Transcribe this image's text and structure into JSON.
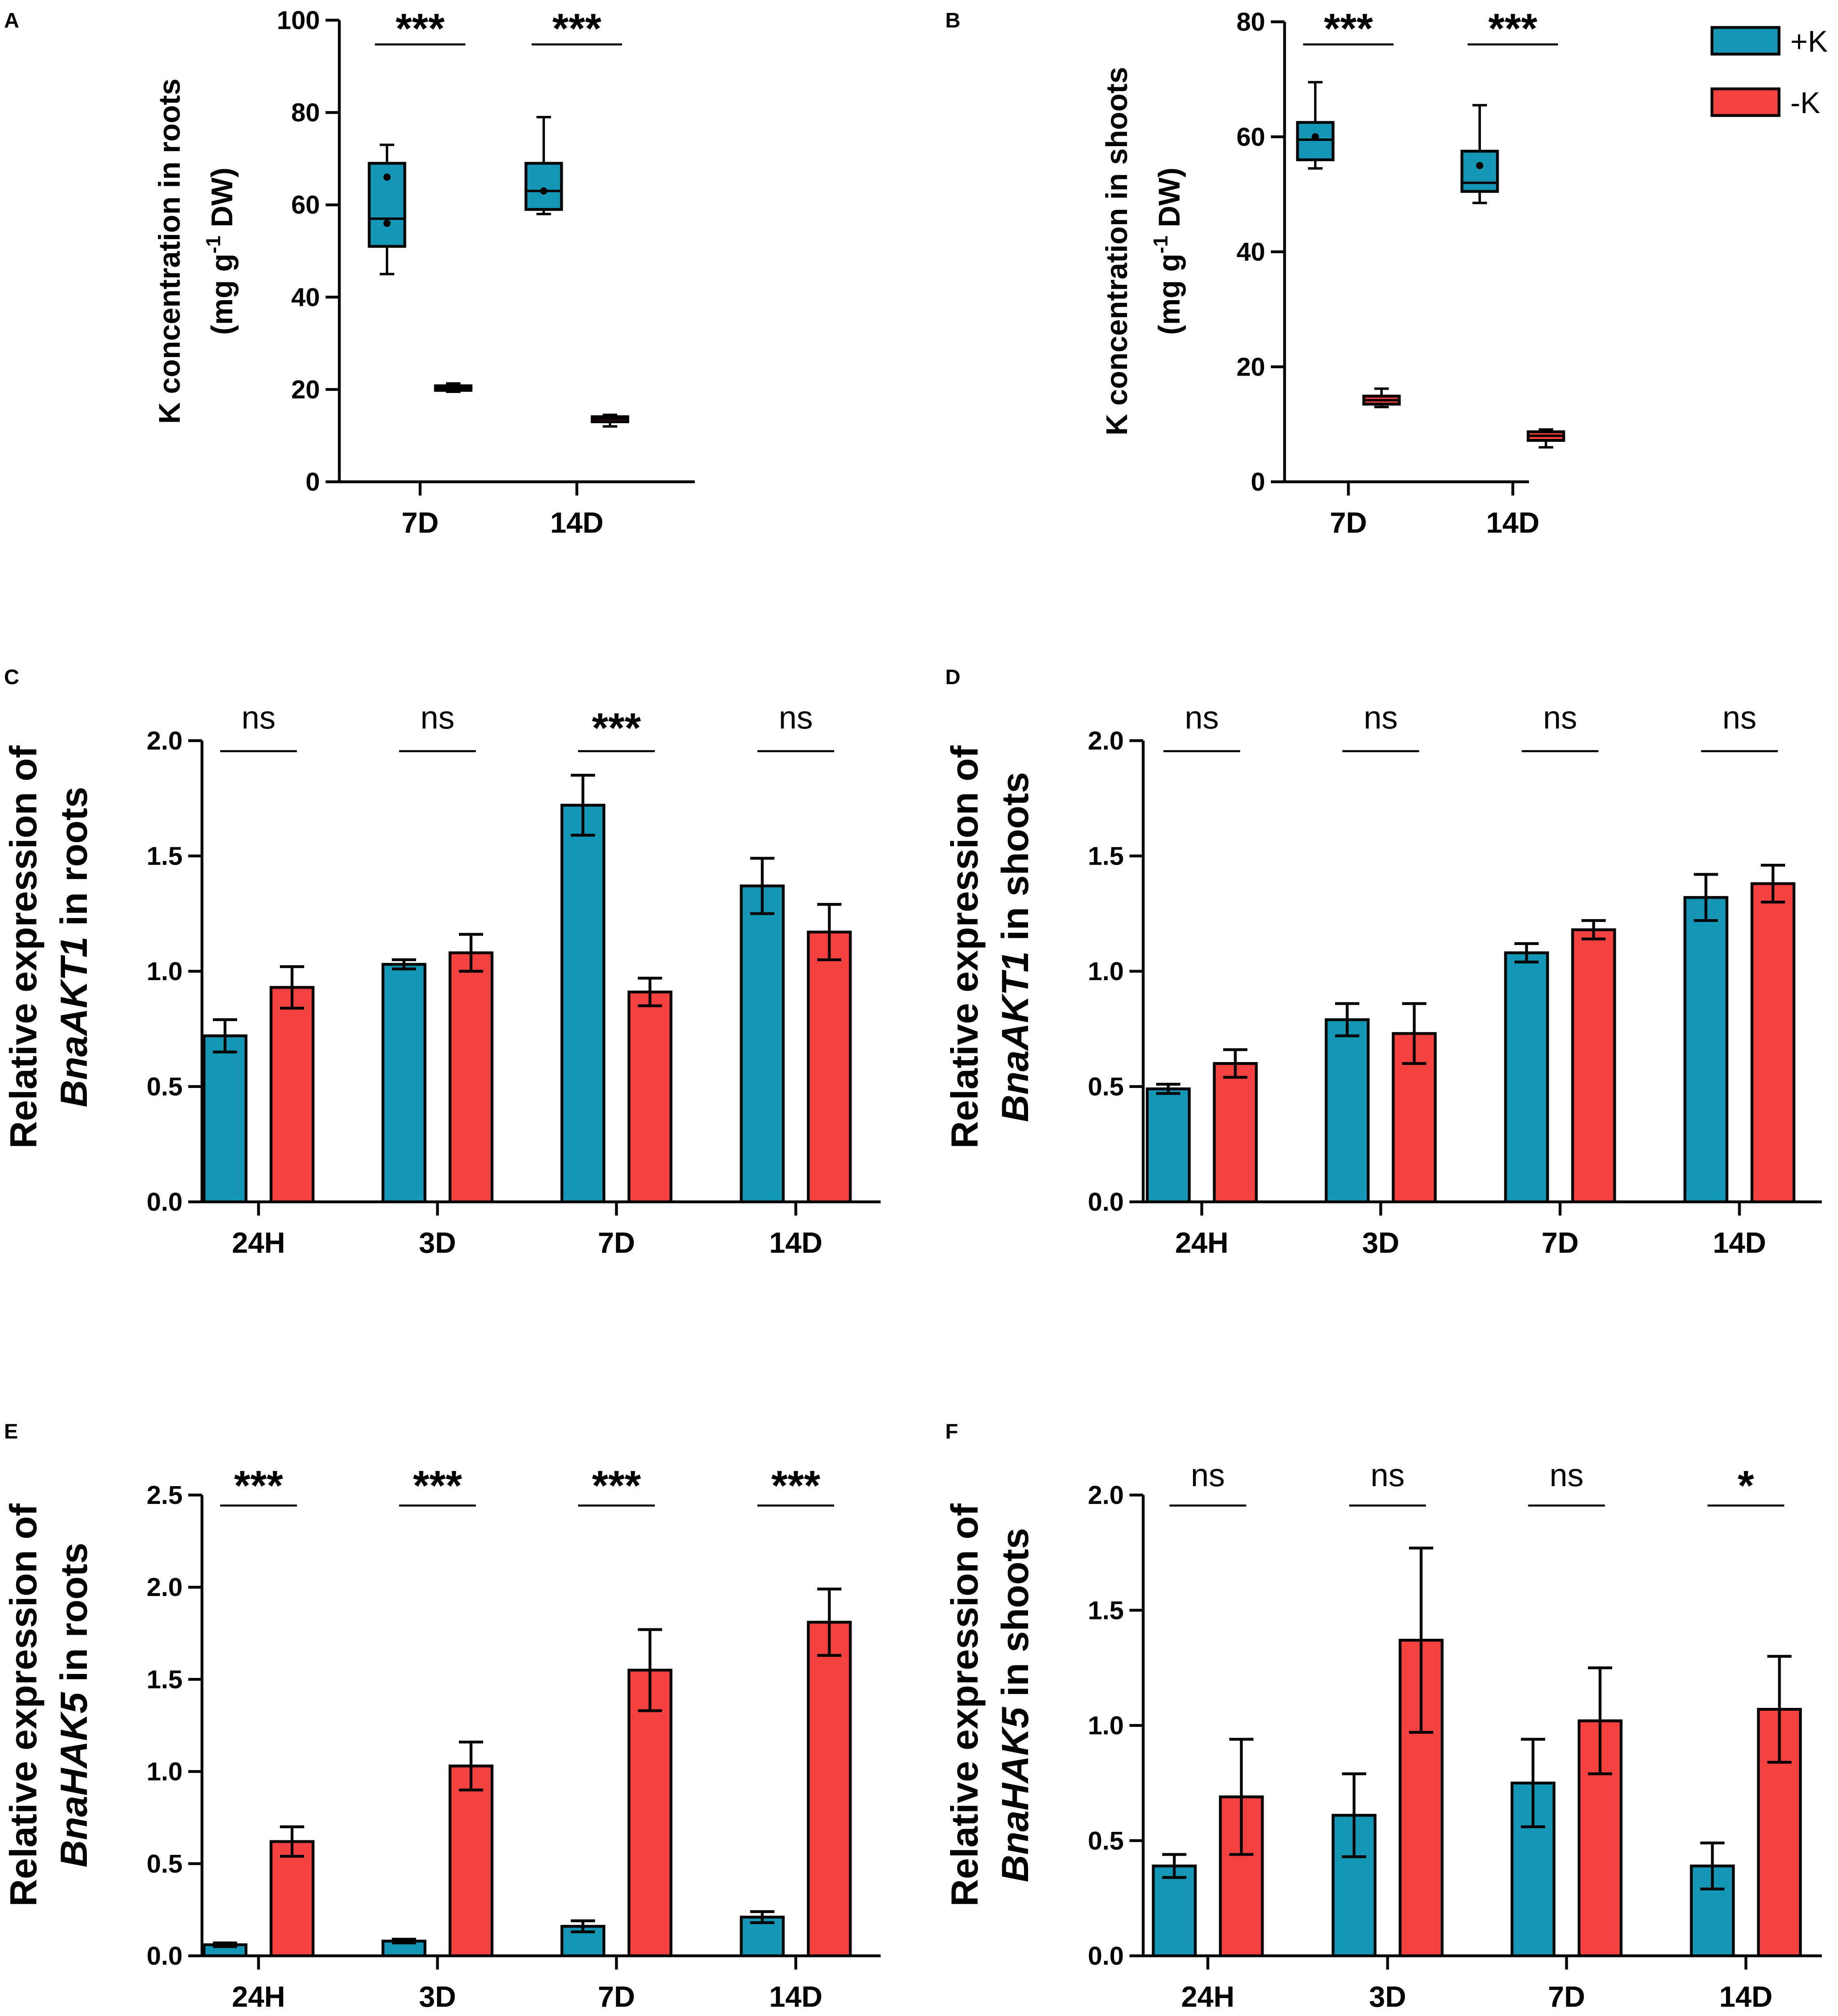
{
  "legend": {
    "entries": [
      {
        "label": "+K",
        "color": "#1397b5"
      },
      {
        "label": "-K",
        "color": "#f5413f"
      }
    ]
  },
  "chart_data": [
    {
      "panel": "A",
      "type": "box",
      "title": "",
      "xlabel": "",
      "ylabel_line1": "K concentration in roots",
      "ylabel_line2_pre": "(mg g",
      "ylabel_line2_sup": "-1",
      "ylabel_line2_post": " DW)",
      "ylim": [
        0,
        100
      ],
      "yticks": [
        0,
        20,
        40,
        60,
        80,
        100
      ],
      "ytick_labels": [
        "0",
        "20",
        "40",
        "60",
        "80",
        "100"
      ],
      "categories": [
        "7D",
        "14D"
      ],
      "series": [
        {
          "name": "+K",
          "boxes": [
            {
              "min": 45,
              "q1": 51,
              "median": 57,
              "q3": 69,
              "max": 73,
              "points": [
                66,
                56
              ]
            },
            {
              "min": 58,
              "q1": 59,
              "median": 63,
              "q3": 69,
              "max": 79,
              "points": [
                63
              ]
            }
          ]
        },
        {
          "name": "-K",
          "boxes": [
            {
              "min": 19.5,
              "q1": 19.8,
              "median": 20.3,
              "q3": 20.8,
              "max": 21.3,
              "points": []
            },
            {
              "min": 12,
              "q1": 13,
              "median": 13.6,
              "q3": 14.1,
              "max": 14.5,
              "points": []
            }
          ]
        }
      ],
      "significance": [
        "***",
        "***"
      ]
    },
    {
      "panel": "B",
      "type": "box",
      "title": "",
      "xlabel": "",
      "ylabel_line1": "K concentration in shoots",
      "ylabel_line2_pre": "(mg g",
      "ylabel_line2_sup": "-1",
      "ylabel_line2_post": " DW)",
      "ylim": [
        0,
        80
      ],
      "yticks": [
        0,
        20,
        40,
        60,
        80
      ],
      "ytick_labels": [
        "0",
        "20",
        "40",
        "60",
        "80"
      ],
      "categories": [
        "7D",
        "14D"
      ],
      "series": [
        {
          "name": "+K",
          "boxes": [
            {
              "min": 54.5,
              "q1": 56,
              "median": 59.5,
              "q3": 62.5,
              "max": 69.5,
              "points": [
                60
              ]
            },
            {
              "min": 48.5,
              "q1": 50.5,
              "median": 52,
              "q3": 57.5,
              "max": 65.5,
              "points": [
                55
              ]
            }
          ]
        },
        {
          "name": "-K",
          "boxes": [
            {
              "min": 13,
              "q1": 13.5,
              "median": 14.2,
              "q3": 14.9,
              "max": 16.2,
              "points": []
            },
            {
              "min": 6,
              "q1": 7.2,
              "median": 8,
              "q3": 8.7,
              "max": 9.1,
              "points": []
            }
          ]
        }
      ],
      "significance": [
        "***",
        "***"
      ]
    },
    {
      "panel": "C",
      "type": "bar",
      "title": "",
      "xlabel": "",
      "ylabel_line1": "Relative expression of",
      "ylabel_gene": "BnaAKT1",
      "ylabel_tail": " in roots",
      "ylim": [
        0,
        2.0
      ],
      "yticks": [
        0,
        0.5,
        1.0,
        1.5,
        2.0
      ],
      "ytick_labels": [
        "0.0",
        "0.5",
        "1.0",
        "1.5",
        "2.0"
      ],
      "categories": [
        "24H",
        "3D",
        "7D",
        "14D"
      ],
      "series": [
        {
          "name": "+K",
          "values": [
            0.72,
            1.03,
            1.72,
            1.37
          ],
          "errors": [
            0.07,
            0.02,
            0.13,
            0.12
          ]
        },
        {
          "name": "-K",
          "values": [
            0.93,
            1.08,
            0.91,
            1.17
          ],
          "errors": [
            0.09,
            0.08,
            0.06,
            0.12
          ]
        }
      ],
      "significance": [
        "ns",
        "ns",
        "***",
        "ns"
      ]
    },
    {
      "panel": "D",
      "type": "bar",
      "title": "",
      "xlabel": "",
      "ylabel_line1": "Relative expression of",
      "ylabel_gene": "BnaAKT1",
      "ylabel_tail": " in shoots",
      "ylim": [
        0,
        2.0
      ],
      "yticks": [
        0,
        0.5,
        1.0,
        1.5,
        2.0
      ],
      "ytick_labels": [
        "0.0",
        "0.5",
        "1.0",
        "1.5",
        "2.0"
      ],
      "categories": [
        "24H",
        "3D",
        "7D",
        "14D"
      ],
      "series": [
        {
          "name": "+K",
          "values": [
            0.49,
            0.79,
            1.08,
            1.32
          ],
          "errors": [
            0.02,
            0.07,
            0.04,
            0.1
          ]
        },
        {
          "name": "-K",
          "values": [
            0.6,
            0.73,
            1.18,
            1.38
          ],
          "errors": [
            0.06,
            0.13,
            0.04,
            0.08
          ]
        }
      ],
      "significance": [
        "ns",
        "ns",
        "ns",
        "ns"
      ]
    },
    {
      "panel": "E",
      "type": "bar",
      "title": "",
      "xlabel": "",
      "ylabel_line1": "Relative expression of",
      "ylabel_gene": "BnaHAK5",
      "ylabel_tail": " in roots",
      "ylim": [
        0,
        2.5
      ],
      "yticks": [
        0,
        0.5,
        1.0,
        1.5,
        2.0,
        2.5
      ],
      "ytick_labels": [
        "0.0",
        "0.5",
        "1.0",
        "1.5",
        "2.0",
        "2.5"
      ],
      "categories": [
        "24H",
        "3D",
        "7D",
        "14D"
      ],
      "series": [
        {
          "name": "+K",
          "values": [
            0.06,
            0.08,
            0.16,
            0.21
          ],
          "errors": [
            0.01,
            0.01,
            0.03,
            0.03
          ]
        },
        {
          "name": "-K",
          "values": [
            0.62,
            1.03,
            1.55,
            1.81
          ],
          "errors": [
            0.08,
            0.13,
            0.22,
            0.18
          ]
        }
      ],
      "significance": [
        "***",
        "***",
        "***",
        "***"
      ]
    },
    {
      "panel": "F",
      "type": "bar",
      "title": "",
      "xlabel": "",
      "ylabel_line1": "Relative expression of",
      "ylabel_gene": "BnaHAK5",
      "ylabel_tail": " in shoots",
      "ylim": [
        0,
        2.0
      ],
      "yticks": [
        0,
        0.5,
        1.0,
        1.5,
        2.0
      ],
      "ytick_labels": [
        "0.0",
        "0.5",
        "1.0",
        "1.5",
        "2.0"
      ],
      "categories": [
        "24H",
        "3D",
        "7D",
        "14D"
      ],
      "series": [
        {
          "name": "+K",
          "values": [
            0.39,
            0.61,
            0.75,
            0.39
          ],
          "errors": [
            0.05,
            0.18,
            0.19,
            0.1
          ]
        },
        {
          "name": "-K",
          "values": [
            0.69,
            1.37,
            1.02,
            1.07
          ],
          "errors": [
            0.25,
            0.4,
            0.23,
            0.23
          ]
        }
      ],
      "significance": [
        "ns",
        "ns",
        "ns",
        "*"
      ]
    }
  ]
}
